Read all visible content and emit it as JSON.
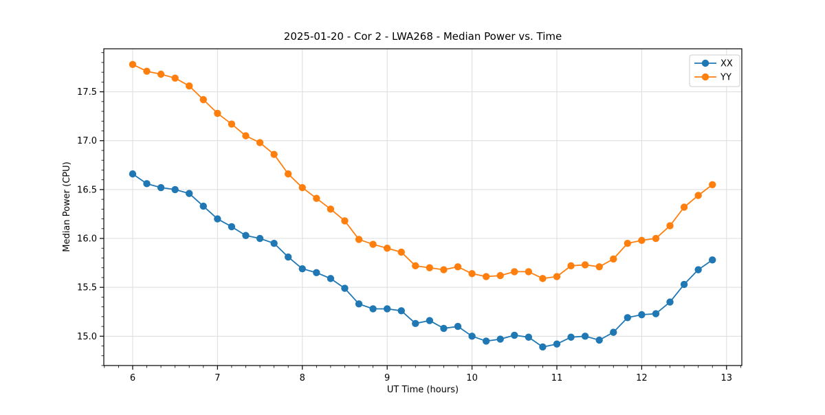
{
  "chart_data": {
    "type": "line",
    "title": "2025-01-20 - Cor 2 - LWA268 - Median Power vs. Time",
    "xlabel": "UT Time (hours)",
    "ylabel": "Median Power (CPU)",
    "xlim": [
      5.66,
      13.18
    ],
    "ylim": [
      14.7,
      17.94
    ],
    "x_ticks": [
      6,
      7,
      8,
      9,
      10,
      11,
      12,
      13
    ],
    "y_ticks": [
      15.0,
      15.5,
      16.0,
      16.5,
      17.0,
      17.5
    ],
    "x_minor_divisions_per_major": 6,
    "y_minor_divisions_per_major": 5,
    "grid": true,
    "grid_color": "#dcdcdc",
    "legend_position": "upper right",
    "x": [
      6.0,
      6.1667,
      6.3333,
      6.5,
      6.6667,
      6.8333,
      7.0,
      7.1667,
      7.3333,
      7.5,
      7.6667,
      7.8333,
      8.0,
      8.1667,
      8.3333,
      8.5,
      8.6667,
      8.8333,
      9.0,
      9.1667,
      9.3333,
      9.5,
      9.6667,
      9.8333,
      10.0,
      10.1667,
      10.3333,
      10.5,
      10.6667,
      10.8333,
      11.0,
      11.1667,
      11.3333,
      11.5,
      11.6667,
      11.8333,
      12.0,
      12.1667,
      12.3333,
      12.5,
      12.6667,
      12.8333
    ],
    "series": [
      {
        "name": "XX",
        "color": "#1f77b4",
        "values": [
          16.66,
          16.56,
          16.52,
          16.5,
          16.46,
          16.33,
          16.2,
          16.12,
          16.03,
          16.0,
          15.95,
          15.81,
          15.69,
          15.65,
          15.59,
          15.49,
          15.33,
          15.28,
          15.28,
          15.26,
          15.13,
          15.16,
          15.08,
          15.1,
          15.0,
          14.95,
          14.97,
          15.01,
          14.99,
          14.89,
          14.92,
          14.99,
          15.0,
          14.96,
          15.04,
          15.19,
          15.22,
          15.23,
          15.35,
          15.53,
          15.68,
          15.78
        ]
      },
      {
        "name": "YY",
        "color": "#ff7f0e",
        "values": [
          17.78,
          17.71,
          17.68,
          17.64,
          17.56,
          17.42,
          17.28,
          17.17,
          17.05,
          16.98,
          16.86,
          16.66,
          16.52,
          16.41,
          16.3,
          16.18,
          15.99,
          15.94,
          15.9,
          15.86,
          15.72,
          15.7,
          15.68,
          15.71,
          15.64,
          15.61,
          15.62,
          15.66,
          15.66,
          15.59,
          15.61,
          15.72,
          15.73,
          15.71,
          15.79,
          15.95,
          15.98,
          16.0,
          16.13,
          16.32,
          16.44,
          16.55
        ]
      }
    ]
  },
  "legend": {
    "items": [
      {
        "label": "XX",
        "color": "#1f77b4"
      },
      {
        "label": "YY",
        "color": "#ff7f0e"
      }
    ]
  }
}
